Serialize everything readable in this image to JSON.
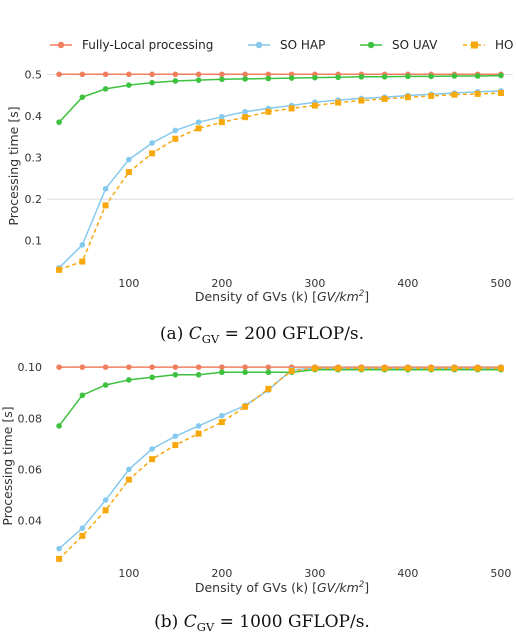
{
  "legend": [
    {
      "label": "Fully-Local processing",
      "color": "#f07f5e",
      "marker": "circle"
    },
    {
      "label": "SO HAP",
      "color": "#86c9ee",
      "marker": "circle"
    },
    {
      "label": "SO UAV",
      "color": "#3ec13e",
      "marker": "circle"
    },
    {
      "label": "HO",
      "color": "#f7a80c",
      "marker": "square"
    }
  ],
  "chart_data": [
    {
      "type": "line",
      "caption": "(a) C_GV = 200 GFLOP/s.",
      "caption_parts": {
        "prefix": "(a) ",
        "symbol": "C",
        "subscript": "GV",
        "rest": " = 200 GFLOP/s."
      },
      "xlabel": "Density of GVs (k) [GV/km²]",
      "xlabel_parts": {
        "text": "Density of GVs (k) [",
        "unit_main": "GV/km",
        "unit_sup": "2",
        "close": "]"
      },
      "ylabel": "Processing time [s]",
      "xlim": [
        12,
        513
      ],
      "ylim": [
        0.02,
        0.52
      ],
      "xticks": [
        100,
        200,
        300,
        400,
        500
      ],
      "yticks": [
        0.1,
        0.2,
        0.3,
        0.4,
        0.5
      ],
      "ytick_labels": [
        "0.1",
        "0.2",
        "0.3",
        "0.4",
        "0.5"
      ],
      "x": [
        25,
        50,
        75,
        100,
        125,
        150,
        175,
        200,
        225,
        250,
        275,
        300,
        325,
        350,
        375,
        400,
        425,
        450,
        475,
        500
      ],
      "series": [
        {
          "name": "Fully-Local processing",
          "values": [
            0.5,
            0.5,
            0.5,
            0.5,
            0.5,
            0.5,
            0.5,
            0.5,
            0.5,
            0.5,
            0.5,
            0.5,
            0.5,
            0.5,
            0.5,
            0.5,
            0.5,
            0.5,
            0.5,
            0.5
          ]
        },
        {
          "name": "SO HAP",
          "values": [
            0.035,
            0.09,
            0.225,
            0.295,
            0.335,
            0.365,
            0.385,
            0.398,
            0.41,
            0.418,
            0.425,
            0.433,
            0.438,
            0.442,
            0.445,
            0.449,
            0.452,
            0.455,
            0.458,
            0.46
          ]
        },
        {
          "name": "SO UAV",
          "values": [
            0.385,
            0.445,
            0.465,
            0.474,
            0.48,
            0.484,
            0.486,
            0.488,
            0.489,
            0.49,
            0.491,
            0.492,
            0.493,
            0.494,
            0.494,
            0.495,
            0.495,
            0.496,
            0.496,
            0.497
          ]
        },
        {
          "name": "HO",
          "values": [
            0.03,
            0.05,
            0.185,
            0.265,
            0.31,
            0.345,
            0.37,
            0.385,
            0.397,
            0.41,
            0.418,
            0.425,
            0.432,
            0.437,
            0.441,
            0.445,
            0.448,
            0.451,
            0.453,
            0.455
          ]
        }
      ],
      "hlines": [
        0.2,
        0.5
      ]
    },
    {
      "type": "line",
      "caption": "(b) C_GV = 1000 GFLOP/s.",
      "caption_parts": {
        "prefix": "(b) ",
        "symbol": "C",
        "subscript": "GV",
        "rest": " = 1000 GFLOP/s."
      },
      "xlabel": "Density of GVs (k) [GV/km²]",
      "xlabel_parts": {
        "text": "Density of GVs (k) [",
        "unit_main": "GV/km",
        "unit_sup": "2",
        "close": "]"
      },
      "ylabel": "Processing time [s]",
      "xlim": [
        12,
        513
      ],
      "ylim": [
        0.023,
        0.102
      ],
      "xticks": [
        100,
        200,
        300,
        400,
        500
      ],
      "yticks": [
        0.04,
        0.06,
        0.08,
        0.1
      ],
      "ytick_labels": [
        "0.04",
        "0.06",
        "0.08",
        "0.10"
      ],
      "x": [
        25,
        50,
        75,
        100,
        125,
        150,
        175,
        200,
        225,
        250,
        275,
        300,
        325,
        350,
        375,
        400,
        425,
        450,
        475,
        500
      ],
      "series": [
        {
          "name": "Fully-Local processing",
          "values": [
            0.1,
            0.1,
            0.1,
            0.1,
            0.1,
            0.1,
            0.1,
            0.1,
            0.1,
            0.1,
            0.1,
            0.1,
            0.1,
            0.1,
            0.1,
            0.1,
            0.1,
            0.1,
            0.1,
            0.1
          ]
        },
        {
          "name": "SO HAP",
          "values": [
            0.029,
            0.037,
            0.048,
            0.06,
            0.068,
            0.073,
            0.077,
            0.081,
            0.085,
            0.091,
            0.099,
            0.0995,
            0.0995,
            0.0995,
            0.0995,
            0.0995,
            0.0995,
            0.0995,
            0.0995,
            0.0995
          ]
        },
        {
          "name": "SO UAV",
          "values": [
            0.077,
            0.089,
            0.093,
            0.095,
            0.096,
            0.097,
            0.097,
            0.098,
            0.098,
            0.098,
            0.098,
            0.099,
            0.099,
            0.099,
            0.099,
            0.099,
            0.099,
            0.099,
            0.099,
            0.099
          ]
        },
        {
          "name": "HO",
          "values": [
            0.025,
            0.034,
            0.044,
            0.056,
            0.064,
            0.0695,
            0.074,
            0.0785,
            0.0845,
            0.0915,
            0.0985,
            0.0995,
            0.0995,
            0.0995,
            0.0995,
            0.0995,
            0.0995,
            0.0995,
            0.0995,
            0.0995
          ]
        }
      ],
      "hlines": []
    }
  ]
}
